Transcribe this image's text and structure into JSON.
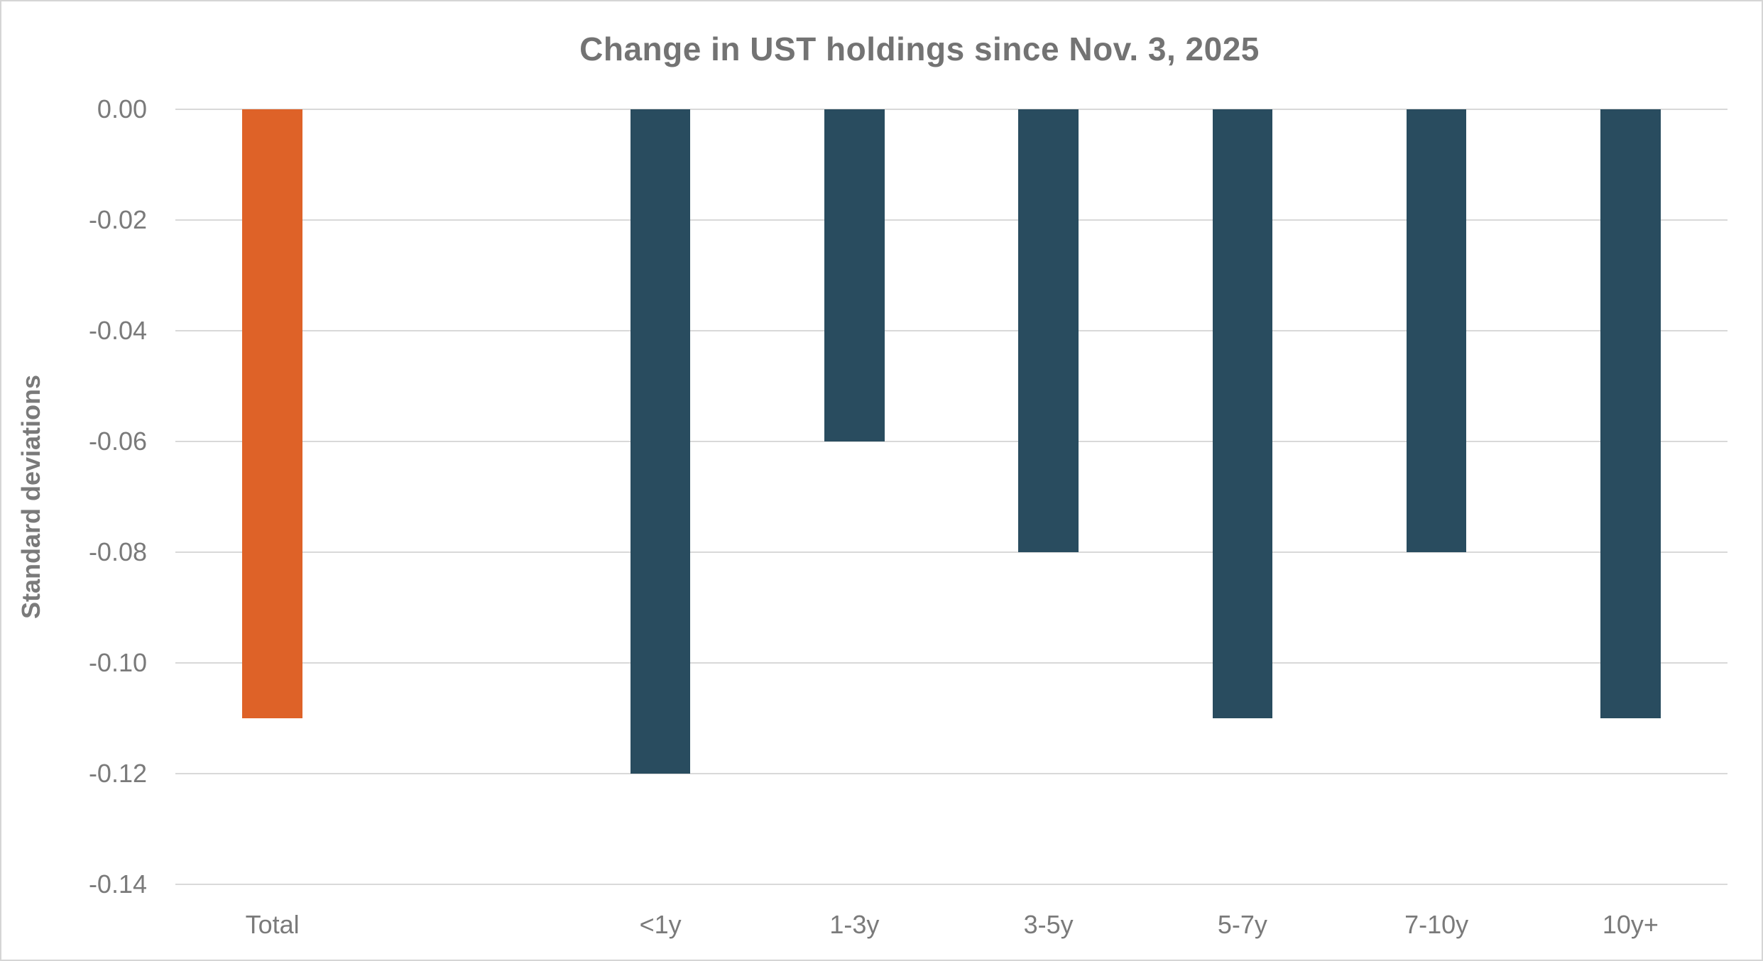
{
  "chart_data": {
    "type": "bar",
    "title": "Change in UST holdings since Nov. 3, 2025",
    "ylabel": "Standard deviations",
    "xlabel": "",
    "categories": [
      "Total",
      "",
      "<1y",
      "1-3y",
      "3-5y",
      "5-7y",
      "7-10y",
      "10y+"
    ],
    "values": [
      -0.11,
      null,
      -0.12,
      -0.06,
      -0.08,
      -0.11,
      -0.08,
      -0.11
    ],
    "ylim": [
      -0.14,
      0.0
    ],
    "ytick_step": 0.02,
    "ytick_labels": [
      "0.00",
      "-0.02",
      "-0.04",
      "-0.06",
      "-0.08",
      "-0.10",
      "-0.12",
      "-0.14"
    ],
    "grid": true,
    "legend": "none",
    "bar_width_ratio": 0.31,
    "highlight_category": "Total",
    "colors": {
      "highlight_bar": "#DE6228",
      "default_bar": "#294C5F",
      "gridline": "#D9D9D9",
      "tick_text": "#7A7A7A",
      "title_text": "#737373",
      "frame_border": "#D5D5D5",
      "background": "#FFFFFF"
    }
  }
}
